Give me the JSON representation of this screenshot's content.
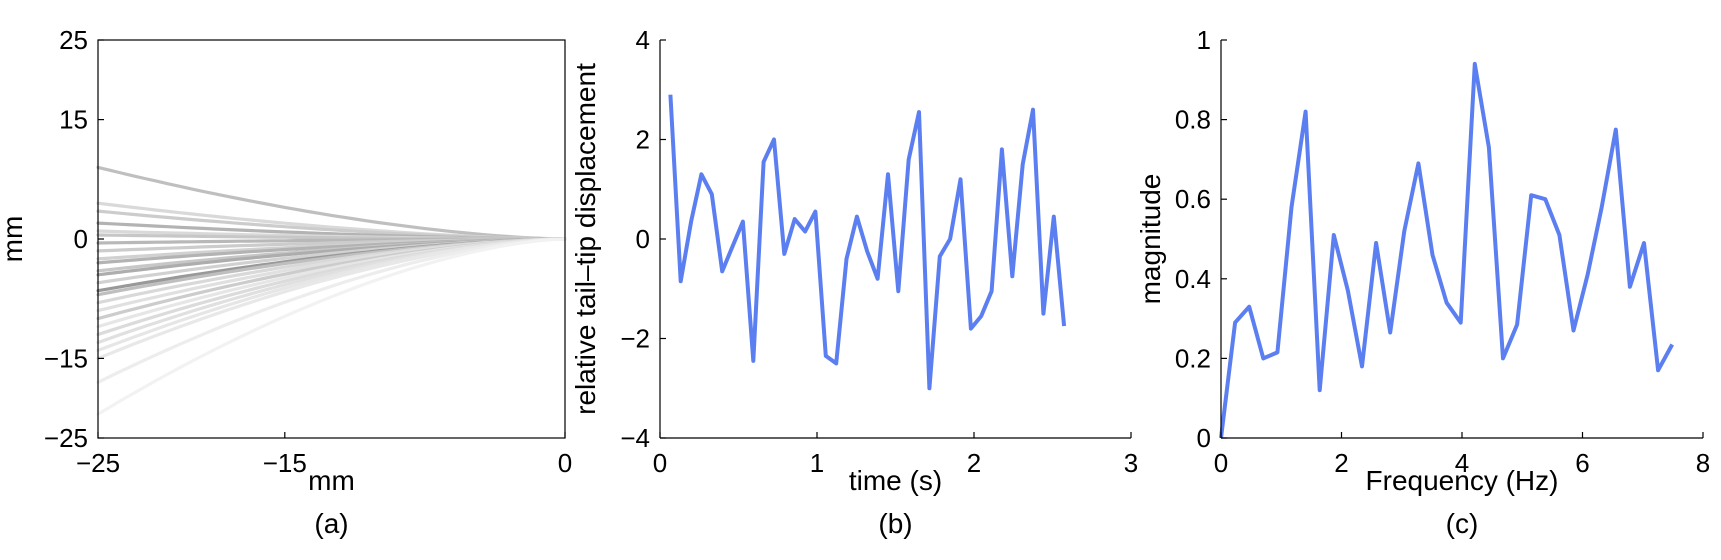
{
  "colors": {
    "series": "#5b7ff0",
    "tail_dark": "#8f8f8f",
    "tail_light": "#f2f2f2"
  },
  "chart_data": [
    {
      "id": "a",
      "type": "line",
      "caption": "(a)",
      "xlabel": "mm",
      "ylabel": "mm",
      "xlim": [
        -25,
        0
      ],
      "ylim": [
        -25,
        25
      ],
      "xticks": [
        -25,
        -15,
        0
      ],
      "yticks": [
        -25,
        -15,
        0,
        15,
        25
      ],
      "frame": "box",
      "grid": false,
      "tail_endpoints": [
        9,
        4.5,
        3.5,
        2,
        1,
        0.5,
        -0.5,
        -1.5,
        -2.5,
        -3,
        -4,
        -4.5,
        -5.5,
        -6.5,
        -7,
        -8,
        -9,
        -10,
        -11,
        -12,
        -13,
        -14,
        -15,
        -18,
        -22
      ],
      "tail_shades": [
        0.75,
        0.85,
        0.8,
        0.7,
        0.85,
        0.78,
        0.72,
        0.8,
        0.82,
        0.7,
        0.78,
        0.68,
        0.82,
        0.6,
        0.75,
        0.85,
        0.88,
        0.8,
        0.9,
        0.86,
        0.88,
        0.9,
        0.91,
        0.93,
        0.95
      ]
    },
    {
      "id": "b",
      "type": "line",
      "caption": "(b)",
      "xlabel": "time (s)",
      "ylabel": "relative tail–tip displacement",
      "xlim": [
        0,
        3
      ],
      "ylim": [
        -4,
        4
      ],
      "xticks": [
        0,
        1,
        2,
        3
      ],
      "yticks": [
        -4,
        -2,
        0,
        2,
        4
      ],
      "frame": "left-bottom",
      "grid": false,
      "x": [
        0.066,
        0.132,
        0.198,
        0.264,
        0.33,
        0.396,
        0.462,
        0.528,
        0.594,
        0.66,
        0.726,
        0.792,
        0.858,
        0.924,
        0.99,
        1.056,
        1.122,
        1.188,
        1.254,
        1.32,
        1.386,
        1.452,
        1.518,
        1.584,
        1.65,
        1.716,
        1.782,
        1.848,
        1.914,
        1.98,
        2.046,
        2.112,
        2.178,
        2.244,
        2.31,
        2.376,
        2.442,
        2.508,
        2.574
      ],
      "y": [
        2.9,
        -0.85,
        0.35,
        1.3,
        0.9,
        -0.65,
        -0.15,
        0.35,
        -2.45,
        1.55,
        2.0,
        -0.3,
        0.4,
        0.15,
        0.55,
        -2.35,
        -2.5,
        -0.4,
        0.45,
        -0.25,
        -0.8,
        1.3,
        -1.05,
        1.6,
        2.55,
        -3.0,
        -0.35,
        0.0,
        1.2,
        -1.8,
        -1.55,
        -1.05,
        1.8,
        -0.75,
        1.5,
        2.6,
        -1.5,
        0.45,
        -1.75
      ]
    },
    {
      "id": "c",
      "type": "line",
      "caption": "(c)",
      "xlabel": "Frequency (Hz)",
      "ylabel": "magnitude",
      "xlim": [
        0,
        8
      ],
      "ylim": [
        0,
        1
      ],
      "xticks": [
        0,
        2,
        4,
        6,
        8
      ],
      "yticks": [
        0,
        0.2,
        0.4,
        0.6,
        0.8,
        1
      ],
      "frame": "left-bottom",
      "grid": false,
      "x": [
        0.0,
        0.234,
        0.468,
        0.702,
        0.936,
        1.17,
        1.404,
        1.638,
        1.872,
        2.106,
        2.34,
        2.574,
        2.808,
        3.042,
        3.276,
        3.51,
        3.744,
        3.978,
        4.212,
        4.446,
        4.68,
        4.914,
        5.148,
        5.382,
        5.616,
        5.85,
        6.084,
        6.318,
        6.552,
        6.786,
        7.02,
        7.254,
        7.488
      ],
      "y": [
        0.0,
        0.29,
        0.33,
        0.2,
        0.215,
        0.58,
        0.82,
        0.12,
        0.51,
        0.37,
        0.18,
        0.49,
        0.265,
        0.52,
        0.69,
        0.46,
        0.34,
        0.29,
        0.94,
        0.73,
        0.2,
        0.285,
        0.61,
        0.6,
        0.51,
        0.27,
        0.41,
        0.58,
        0.775,
        0.38,
        0.49,
        0.17,
        0.235
      ]
    }
  ]
}
